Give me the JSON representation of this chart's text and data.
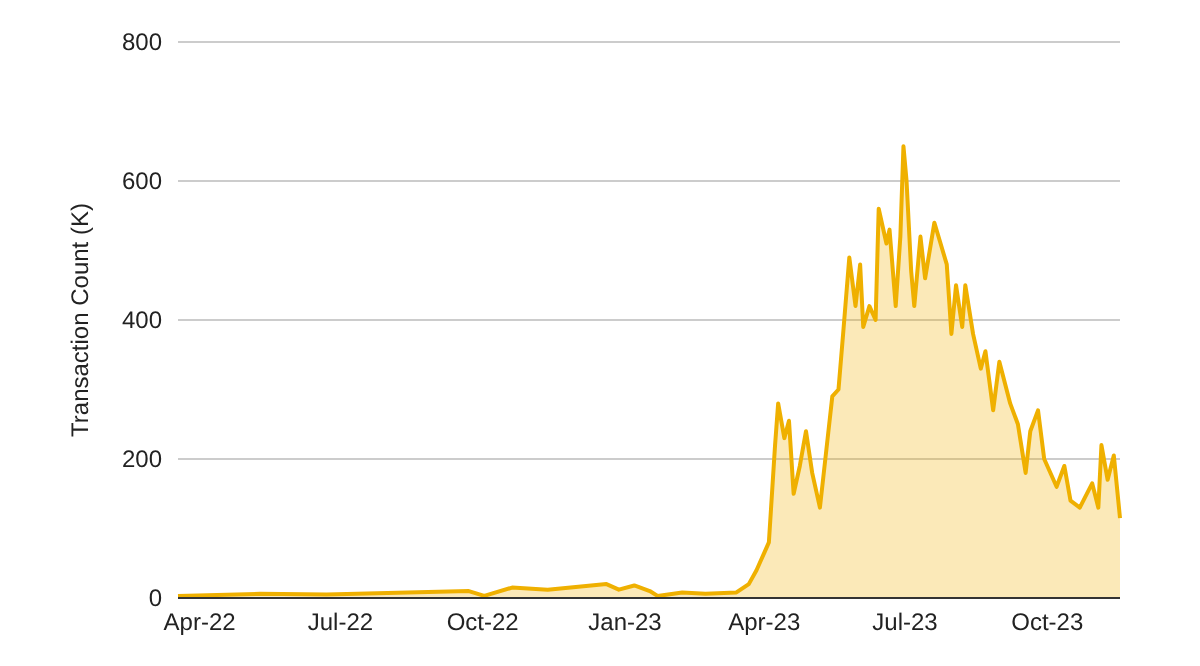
{
  "chart_data": {
    "type": "area",
    "ylabel": "Transaction Count (K)",
    "grid": "y",
    "xlim": [
      "2022-03-18",
      "2023-11-17"
    ],
    "ylim": [
      0,
      800
    ],
    "yticks": [
      0,
      200,
      400,
      600,
      800
    ],
    "xticks": [
      {
        "value": "2022-04-01",
        "label": "Apr-22"
      },
      {
        "value": "2022-07-01",
        "label": "Jul-22"
      },
      {
        "value": "2022-10-01",
        "label": "Oct-22"
      },
      {
        "value": "2023-01-01",
        "label": "Jan-23"
      },
      {
        "value": "2023-04-01",
        "label": "Apr-23"
      },
      {
        "value": "2023-07-01",
        "label": "Jul-23"
      },
      {
        "value": "2023-10-01",
        "label": "Oct-23"
      }
    ],
    "x": [
      "2022-03-18",
      "2022-05-10",
      "2022-06-22",
      "2022-09-22",
      "2022-10-02",
      "2022-10-20",
      "2022-11-12",
      "2022-12-20",
      "2022-12-28",
      "2023-01-07",
      "2023-01-17",
      "2023-01-22",
      "2023-02-07",
      "2023-02-22",
      "2023-03-14",
      "2023-03-22",
      "2023-03-27",
      "2023-04-01",
      "2023-04-04",
      "2023-04-08",
      "2023-04-10",
      "2023-04-14",
      "2023-04-17",
      "2023-04-20",
      "2023-04-24",
      "2023-04-28",
      "2023-05-02",
      "2023-05-07",
      "2023-05-12",
      "2023-05-15",
      "2023-05-19",
      "2023-05-22",
      "2023-05-26",
      "2023-05-30",
      "2023-06-02",
      "2023-06-04",
      "2023-06-08",
      "2023-06-12",
      "2023-06-14",
      "2023-06-19",
      "2023-06-21",
      "2023-06-25",
      "2023-06-28",
      "2023-06-30",
      "2023-07-02",
      "2023-07-05",
      "2023-07-07",
      "2023-07-11",
      "2023-07-14",
      "2023-07-20",
      "2023-07-24",
      "2023-07-28",
      "2023-07-31",
      "2023-08-03",
      "2023-08-07",
      "2023-08-09",
      "2023-08-14",
      "2023-08-19",
      "2023-08-22",
      "2023-08-27",
      "2023-08-31",
      "2023-09-07",
      "2023-09-12",
      "2023-09-17",
      "2023-09-20",
      "2023-09-25",
      "2023-09-29",
      "2023-10-07",
      "2023-10-12",
      "2023-10-16",
      "2023-10-22",
      "2023-10-30",
      "2023-11-03",
      "2023-11-05",
      "2023-11-09",
      "2023-11-13",
      "2023-11-17"
    ],
    "series": [
      {
        "color": "#efb000",
        "values": [
          3,
          6,
          5,
          10,
          3,
          15,
          12,
          20,
          12,
          18,
          10,
          3,
          8,
          6,
          8,
          20,
          40,
          65,
          80,
          220,
          280,
          230,
          255,
          150,
          190,
          240,
          180,
          130,
          230,
          290,
          300,
          380,
          490,
          420,
          480,
          390,
          420,
          400,
          560,
          510,
          530,
          420,
          520,
          650,
          600,
          470,
          420,
          520,
          460,
          540,
          510,
          480,
          380,
          450,
          390,
          450,
          380,
          330,
          355,
          270,
          340,
          280,
          250,
          180,
          240,
          270,
          200,
          160,
          190,
          140,
          130,
          165,
          130,
          220,
          170,
          205,
          115
        ]
      }
    ]
  }
}
